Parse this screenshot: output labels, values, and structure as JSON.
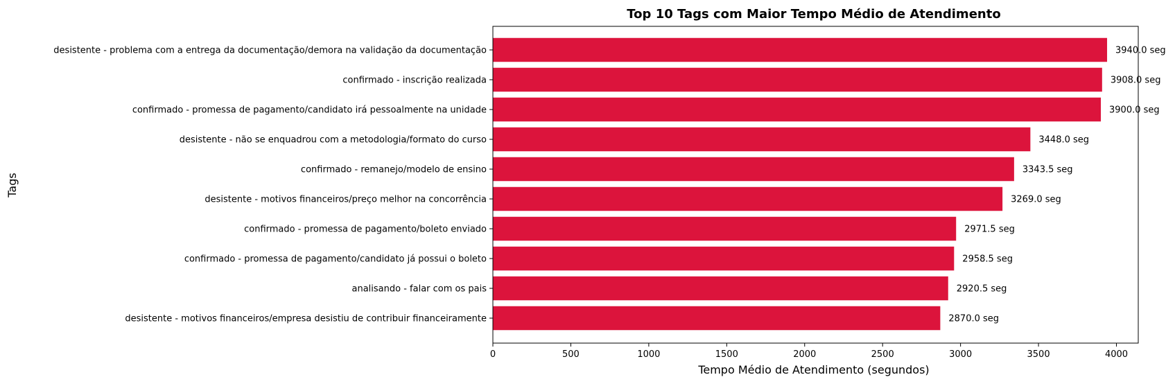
{
  "chart_data": {
    "type": "bar",
    "orientation": "horizontal",
    "title": "Top 10 Tags com Maior Tempo Médio de Atendimento",
    "xlabel": "Tempo Médio de Atendimento (segundos)",
    "ylabel": "Tags",
    "xlim": [
      0,
      4140
    ],
    "xticks": [
      0,
      500,
      1000,
      1500,
      2000,
      2500,
      3000,
      3500,
      4000
    ],
    "value_suffix": " seg",
    "bar_color": "#dc143c",
    "grid": false,
    "categories": [
      "desistente - problema com a entrega da documentação/demora na validação da documentação",
      "confirmado - inscrição realizada",
      "confirmado - promessa de pagamento/candidato irá pessoalmente na unidade",
      "desistente - não se enquadrou com a metodologia/formato do curso",
      "confirmado - remanejo/modelo de ensino",
      "desistente - motivos financeiros/preço melhor na concorrência",
      "confirmado - promessa de pagamento/boleto enviado",
      "confirmado - promessa de pagamento/candidato já possui o boleto",
      "analisando - falar com os pais",
      "desistente - motivos financeiros/empresa desistiu de contribuir financeiramente"
    ],
    "values": [
      3940.0,
      3908.0,
      3900.0,
      3448.0,
      3343.5,
      3269.0,
      2971.5,
      2958.5,
      2920.5,
      2870.0
    ],
    "value_labels": [
      "3940.0 seg",
      "3908.0 seg",
      "3900.0 seg",
      "3448.0 seg",
      "3343.5 seg",
      "3269.0 seg",
      "2971.5 seg",
      "2958.5 seg",
      "2920.5 seg",
      "2870.0 seg"
    ]
  }
}
